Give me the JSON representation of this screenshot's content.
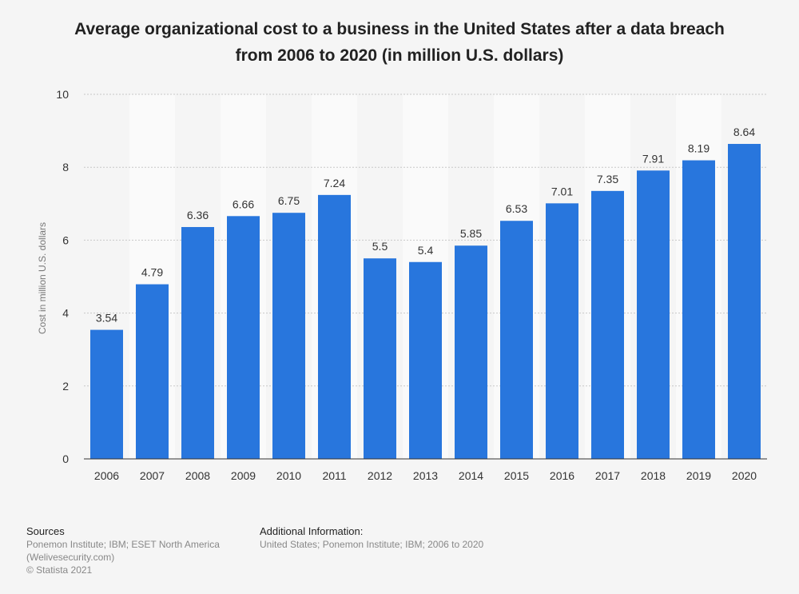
{
  "chart_data": {
    "type": "bar",
    "title": "Average organizational cost to a business in the United States after a data breach from 2006 to 2020 (in million U.S. dollars)",
    "title_lines": [
      "Average organizational cost to a business in the United States after a data breach",
      "from 2006 to 2020 (in million U.S. dollars)"
    ],
    "categories": [
      "2006",
      "2007",
      "2008",
      "2009",
      "2010",
      "2011",
      "2012",
      "2013",
      "2014",
      "2015",
      "2016",
      "2017",
      "2018",
      "2019",
      "2020"
    ],
    "values": [
      3.54,
      4.79,
      6.36,
      6.66,
      6.75,
      7.24,
      5.5,
      5.4,
      5.85,
      6.53,
      7.01,
      7.35,
      7.91,
      8.19,
      8.64
    ],
    "data_labels": [
      "3.54",
      "4.79",
      "6.36",
      "6.66",
      "6.75",
      "7.24",
      "5.5",
      "5.4",
      "5.85",
      "6.53",
      "7.01",
      "7.35",
      "7.91",
      "8.19",
      "8.64"
    ],
    "xlabel": "",
    "ylabel": "Cost in million U.S. dollars",
    "ylim": [
      0,
      10
    ],
    "yticks": [
      0,
      2,
      4,
      6,
      8,
      10
    ],
    "grid": true,
    "bar_color": "#2876dd"
  },
  "footer": {
    "sources_heading": "Sources",
    "sources_lines": [
      "Ponemon Institute; IBM; ESET North America",
      "(Welivesecurity.com)",
      "© Statista 2021"
    ],
    "additional_heading": "Additional Information:",
    "additional_text": "United States; Ponemon Institute; IBM; 2006 to 2020"
  }
}
